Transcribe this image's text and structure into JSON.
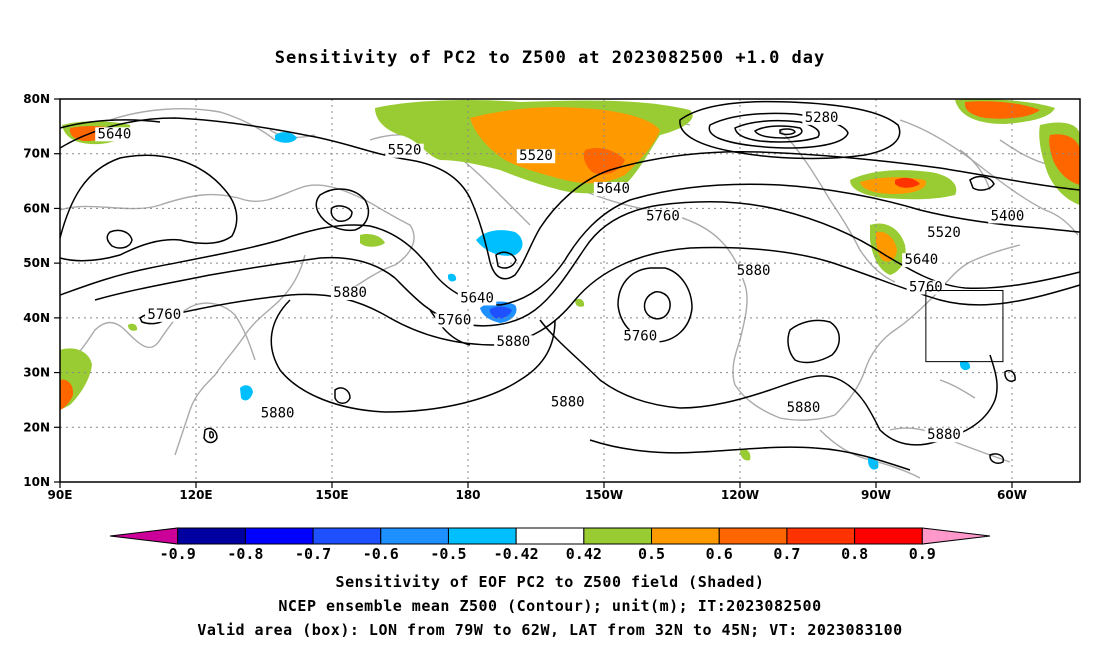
{
  "title": "Sensitivity of PC2 to Z500 at 2023082500 +1.0 day",
  "map": {
    "lat_ticks": [
      "80N",
      "70N",
      "60N",
      "50N",
      "40N",
      "30N",
      "20N",
      "10N"
    ],
    "lon_ticks": [
      "90E",
      "120E",
      "150E",
      "180",
      "150W",
      "120W",
      "90W",
      "60W"
    ],
    "contour_labels": [
      {
        "text": "5280",
        "lon": -102,
        "lat": 76
      },
      {
        "text": "5640",
        "lon": 102,
        "lat": 73
      },
      {
        "text": "5520",
        "lon": 166,
        "lat": 70
      },
      {
        "text": "5520",
        "lon": -165,
        "lat": 69
      },
      {
        "text": "5640",
        "lon": -148,
        "lat": 63
      },
      {
        "text": "5760",
        "lon": -137,
        "lat": 58
      },
      {
        "text": "5400",
        "lon": -61,
        "lat": 58
      },
      {
        "text": "5520",
        "lon": -75,
        "lat": 55
      },
      {
        "text": "5640",
        "lon": -80,
        "lat": 50
      },
      {
        "text": "5760",
        "lon": -79,
        "lat": 45
      },
      {
        "text": "5880",
        "lon": -117,
        "lat": 48
      },
      {
        "text": "5880",
        "lon": 154,
        "lat": 44
      },
      {
        "text": "5640",
        "lon": -178,
        "lat": 43
      },
      {
        "text": "5760",
        "lon": -183,
        "lat": 39
      },
      {
        "text": "5760",
        "lon": -142,
        "lat": 36
      },
      {
        "text": "5880",
        "lon": -170,
        "lat": 35
      },
      {
        "text": "5760",
        "lon": 113,
        "lat": 40
      },
      {
        "text": "5880",
        "lon": 138,
        "lat": 22
      },
      {
        "text": "5880",
        "lon": -158,
        "lat": 24
      },
      {
        "text": "5880",
        "lon": -106,
        "lat": 23
      },
      {
        "text": "5880",
        "lon": -75,
        "lat": 18
      }
    ],
    "valid_box": {
      "lon_from": -79,
      "lon_to": -62,
      "lat_from": 32,
      "lat_to": 45
    }
  },
  "colorbar": {
    "labels": [
      "-0.9",
      "-0.8",
      "-0.7",
      "-0.6",
      "-0.5",
      "-0.42",
      "0.42",
      "0.5",
      "0.6",
      "0.7",
      "0.8",
      "0.9"
    ],
    "colors": [
      "#cc0099",
      "#0000a0",
      "#0000ff",
      "#1e50ff",
      "#1e90ff",
      "#00bfff",
      "#ffffff",
      "#99cc33",
      "#ff9900",
      "#ff6600",
      "#ff3300",
      "#ff0000",
      "#ff99cc"
    ]
  },
  "caption": {
    "line1": "Sensitivity of EOF PC2 to Z500 field (Shaded)",
    "line2": "NCEP ensemble mean Z500 (Contour); unit(m); IT:2023082500",
    "line3": "Valid area (box): LON from 79W to 62W, LAT from 32N to 45N; VT: 2023083100"
  }
}
